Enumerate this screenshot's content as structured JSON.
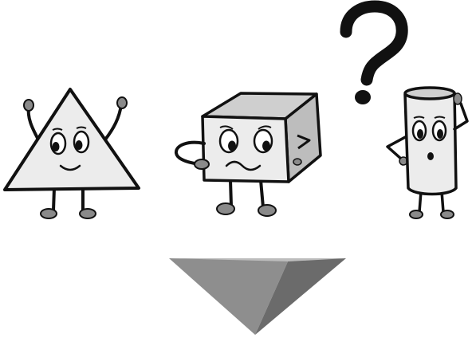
{
  "scene": {
    "characters": [
      {
        "name": "triangle-character",
        "expression": "happy",
        "pose": "arms-raised"
      },
      {
        "name": "cube-character",
        "expression": "worried",
        "pose": "hand-on-chin"
      },
      {
        "name": "cylinder-character",
        "expression": "surprised",
        "pose": "scratching-head"
      }
    ],
    "symbol": "?",
    "answer_shape": "inverted-pyramid"
  },
  "colors": {
    "outline": "#111111",
    "body_light": "#ececec",
    "body_mid": "#cfcfcf",
    "limb_gray": "#8a8a8a",
    "pyramid_left": "#8e8e8e",
    "pyramid_right": "#6b6b6b",
    "pyramid_top": "#bdbdbd"
  }
}
